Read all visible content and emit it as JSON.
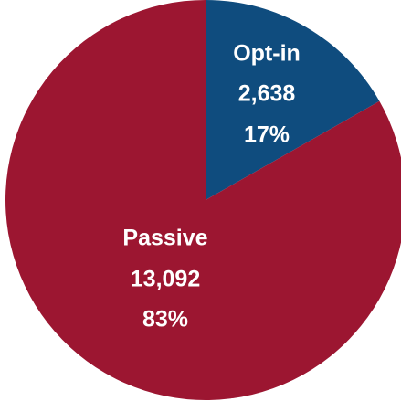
{
  "chart_data": {
    "type": "pie",
    "start_angle_deg": 0,
    "direction": "clockwise",
    "slices": [
      {
        "name": "Opt-in",
        "value": 2638,
        "value_label": "2,638",
        "percent_label": "17%",
        "color": "#0f4c7e"
      },
      {
        "name": "Passive",
        "value": 13092,
        "value_label": "13,092",
        "percent_label": "83%",
        "color": "#9c1631"
      }
    ]
  }
}
